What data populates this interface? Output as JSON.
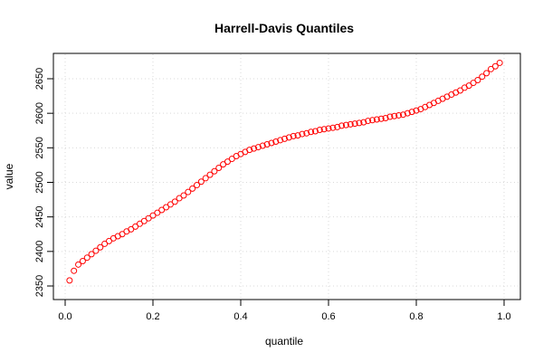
{
  "chart_data": {
    "type": "scatter",
    "title": "Harrell-Davis Quantiles",
    "xlabel": "quantile",
    "ylabel": "value",
    "xlim": [
      0.0,
      1.0
    ],
    "ylim": [
      2350,
      2675
    ],
    "xticks": [
      "0.0",
      "0.2",
      "0.4",
      "0.6",
      "0.8",
      "1.0"
    ],
    "yticks": [
      "2350",
      "2400",
      "2450",
      "2500",
      "2550",
      "2600",
      "2650"
    ],
    "grid": true,
    "marker": "open-circle",
    "point_color": "#ff0000",
    "series": [
      {
        "x": [
          0.01,
          0.02,
          0.03,
          0.04,
          0.05,
          0.06,
          0.07,
          0.08,
          0.09,
          0.1,
          0.11,
          0.12,
          0.13,
          0.14,
          0.15,
          0.16,
          0.17,
          0.18,
          0.19,
          0.2,
          0.21,
          0.22,
          0.23,
          0.24,
          0.25,
          0.26,
          0.27,
          0.28,
          0.29,
          0.3,
          0.31,
          0.32,
          0.33,
          0.34,
          0.35,
          0.36,
          0.37,
          0.38,
          0.39,
          0.4,
          0.41,
          0.42,
          0.43,
          0.44,
          0.45,
          0.46,
          0.47,
          0.48,
          0.49,
          0.5,
          0.51,
          0.52,
          0.53,
          0.54,
          0.55,
          0.56,
          0.57,
          0.58,
          0.59,
          0.6,
          0.61,
          0.62,
          0.63,
          0.64,
          0.65,
          0.66,
          0.67,
          0.68,
          0.69,
          0.7,
          0.71,
          0.72,
          0.73,
          0.74,
          0.75,
          0.76,
          0.77,
          0.78,
          0.79,
          0.8,
          0.81,
          0.82,
          0.83,
          0.84,
          0.85,
          0.86,
          0.87,
          0.88,
          0.89,
          0.9,
          0.91,
          0.92,
          0.93,
          0.94,
          0.95,
          0.96,
          0.97,
          0.98,
          0.99
        ],
        "y": [
          2358,
          2372,
          2381,
          2386,
          2391,
          2396,
          2401,
          2406,
          2411,
          2415,
          2419,
          2422,
          2425,
          2429,
          2432,
          2436,
          2440,
          2444,
          2448,
          2452,
          2456,
          2460,
          2464,
          2468,
          2472,
          2477,
          2481,
          2486,
          2491,
          2496,
          2501,
          2506,
          2511,
          2516,
          2521,
          2526,
          2530,
          2534,
          2538,
          2541,
          2544,
          2547,
          2549,
          2551,
          2553,
          2555,
          2557,
          2559,
          2561,
          2563,
          2565,
          2567,
          2568,
          2570,
          2571,
          2573,
          2574,
          2576,
          2577,
          2578,
          2579,
          2580,
          2582,
          2583,
          2584,
          2585,
          2586,
          2587,
          2589,
          2590,
          2591,
          2592,
          2593,
          2595,
          2596,
          2597,
          2598,
          2600,
          2602,
          2604,
          2606,
          2609,
          2612,
          2615,
          2618,
          2621,
          2624,
          2627,
          2630,
          2633,
          2637,
          2640,
          2644,
          2648,
          2653,
          2658,
          2664,
          2668,
          2673
        ]
      }
    ]
  }
}
